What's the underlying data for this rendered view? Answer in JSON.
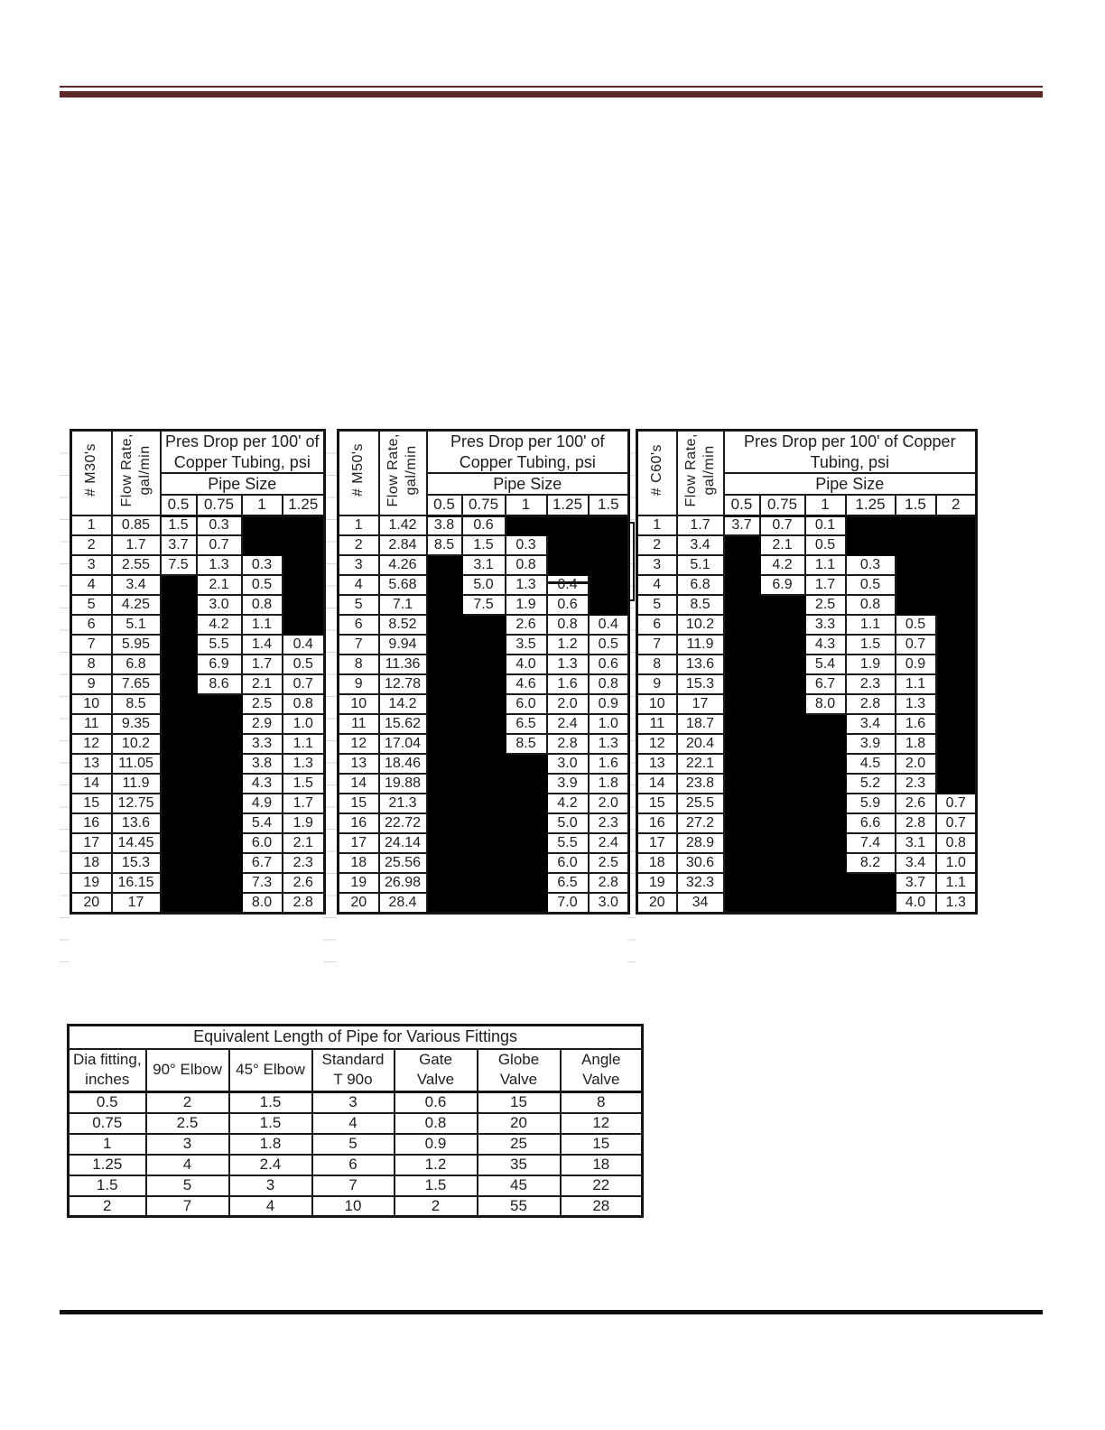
{
  "colors": {
    "top_rule": "#5e2828",
    "bottom_rule": "#0e0e0e",
    "blocked_cell": "#000000",
    "gridline": "#d6d6d6"
  },
  "pressure_tables": [
    {
      "corner_label": "# M30's",
      "flow_label_lines": [
        "Flow Rate,",
        "gal/min"
      ],
      "title_lines": [
        "Pres Drop per 100' of",
        "Copper Tubing, psi"
      ],
      "pipe_size_label": "Pipe Size",
      "sizes": [
        "0.5",
        "0.75",
        "1",
        "1.25"
      ],
      "rows": [
        {
          "n": "1",
          "flow": "0.85",
          "drops": [
            "1.5",
            "0.3",
            "",
            ""
          ]
        },
        {
          "n": "2",
          "flow": "1.7",
          "drops": [
            "3.7",
            "0.7",
            "",
            ""
          ]
        },
        {
          "n": "3",
          "flow": "2.55",
          "drops": [
            "7.5",
            "1.3",
            "0.3",
            ""
          ]
        },
        {
          "n": "4",
          "flow": "3.4",
          "drops": [
            "",
            "2.1",
            "0.5",
            ""
          ]
        },
        {
          "n": "5",
          "flow": "4.25",
          "drops": [
            "",
            "3.0",
            "0.8",
            ""
          ]
        },
        {
          "n": "6",
          "flow": "5.1",
          "drops": [
            "",
            "4.2",
            "1.1",
            ""
          ]
        },
        {
          "n": "7",
          "flow": "5.95",
          "drops": [
            "",
            "5.5",
            "1.4",
            "0.4"
          ]
        },
        {
          "n": "8",
          "flow": "6.8",
          "drops": [
            "",
            "6.9",
            "1.7",
            "0.5"
          ]
        },
        {
          "n": "9",
          "flow": "7.65",
          "drops": [
            "",
            "8.6",
            "2.1",
            "0.7"
          ]
        },
        {
          "n": "10",
          "flow": "8.5",
          "drops": [
            "",
            "",
            "2.5",
            "0.8"
          ]
        },
        {
          "n": "11",
          "flow": "9.35",
          "drops": [
            "",
            "",
            "2.9",
            "1.0"
          ]
        },
        {
          "n": "12",
          "flow": "10.2",
          "drops": [
            "",
            "",
            "3.3",
            "1.1"
          ]
        },
        {
          "n": "13",
          "flow": "11.05",
          "drops": [
            "",
            "",
            "3.8",
            "1.3"
          ]
        },
        {
          "n": "14",
          "flow": "11.9",
          "drops": [
            "",
            "",
            "4.3",
            "1.5"
          ]
        },
        {
          "n": "15",
          "flow": "12.75",
          "drops": [
            "",
            "",
            "4.9",
            "1.7"
          ]
        },
        {
          "n": "16",
          "flow": "13.6",
          "drops": [
            "",
            "",
            "5.4",
            "1.9"
          ]
        },
        {
          "n": "17",
          "flow": "14.45",
          "drops": [
            "",
            "",
            "6.0",
            "2.1"
          ]
        },
        {
          "n": "18",
          "flow": "15.3",
          "drops": [
            "",
            "",
            "6.7",
            "2.3"
          ]
        },
        {
          "n": "19",
          "flow": "16.15",
          "drops": [
            "",
            "",
            "7.3",
            "2.6"
          ]
        },
        {
          "n": "20",
          "flow": "17",
          "drops": [
            "",
            "",
            "8.0",
            "2.8"
          ]
        }
      ]
    },
    {
      "corner_label": "# M50's",
      "flow_label_lines": [
        "Flow Rate,",
        "gal/min"
      ],
      "title_lines": [
        "Pres Drop per 100' of",
        "Copper Tubing, psi"
      ],
      "pipe_size_label": "Pipe Size",
      "sizes": [
        "0.5",
        "0.75",
        "1",
        "1.25",
        "1.5"
      ],
      "rows": [
        {
          "n": "1",
          "flow": "1.42",
          "drops": [
            "3.8",
            "0.6",
            "",
            "",
            ""
          ]
        },
        {
          "n": "2",
          "flow": "2.84",
          "drops": [
            "8.5",
            "1.5",
            "0.3",
            "",
            ""
          ]
        },
        {
          "n": "3",
          "flow": "4.26",
          "drops": [
            "",
            "3.1",
            "0.8",
            "",
            ""
          ]
        },
        {
          "n": "4",
          "flow": "5.68",
          "drops": [
            "",
            "5.0",
            "1.3",
            "0.4",
            ""
          ],
          "strike_index": 3
        },
        {
          "n": "5",
          "flow": "7.1",
          "drops": [
            "",
            "7.5",
            "1.9",
            "0.6",
            ""
          ]
        },
        {
          "n": "6",
          "flow": "8.52",
          "drops": [
            "",
            "",
            "2.6",
            "0.8",
            "0.4"
          ]
        },
        {
          "n": "7",
          "flow": "9.94",
          "drops": [
            "",
            "",
            "3.5",
            "1.2",
            "0.5"
          ]
        },
        {
          "n": "8",
          "flow": "11.36",
          "drops": [
            "",
            "",
            "4.0",
            "1.3",
            "0.6"
          ]
        },
        {
          "n": "9",
          "flow": "12.78",
          "drops": [
            "",
            "",
            "4.6",
            "1.6",
            "0.8"
          ]
        },
        {
          "n": "10",
          "flow": "14.2",
          "drops": [
            "",
            "",
            "6.0",
            "2.0",
            "0.9"
          ]
        },
        {
          "n": "11",
          "flow": "15.62",
          "drops": [
            "",
            "",
            "6.5",
            "2.4",
            "1.0"
          ]
        },
        {
          "n": "12",
          "flow": "17.04",
          "drops": [
            "",
            "",
            "8.5",
            "2.8",
            "1.3"
          ]
        },
        {
          "n": "13",
          "flow": "18.46",
          "drops": [
            "",
            "",
            "",
            "3.0",
            "1.6"
          ]
        },
        {
          "n": "14",
          "flow": "19.88",
          "drops": [
            "",
            "",
            "",
            "3.9",
            "1.8"
          ]
        },
        {
          "n": "15",
          "flow": "21.3",
          "drops": [
            "",
            "",
            "",
            "4.2",
            "2.0"
          ]
        },
        {
          "n": "16",
          "flow": "22.72",
          "drops": [
            "",
            "",
            "",
            "5.0",
            "2.3"
          ]
        },
        {
          "n": "17",
          "flow": "24.14",
          "drops": [
            "",
            "",
            "",
            "5.5",
            "2.4"
          ]
        },
        {
          "n": "18",
          "flow": "25.56",
          "drops": [
            "",
            "",
            "",
            "6.0",
            "2.5"
          ]
        },
        {
          "n": "19",
          "flow": "26.98",
          "drops": [
            "",
            "",
            "",
            "6.5",
            "2.8"
          ]
        },
        {
          "n": "20",
          "flow": "28.4",
          "drops": [
            "",
            "",
            "",
            "7.0",
            "3.0"
          ]
        }
      ]
    },
    {
      "corner_label": "# C60's",
      "flow_label_lines": [
        "Flow Rate,",
        "gal/min"
      ],
      "title_lines": [
        "Pres Drop per 100' of Copper",
        "Tubing, psi"
      ],
      "pipe_size_label": "Pipe Size",
      "sizes": [
        "0.5",
        "0.75",
        "1",
        "1.25",
        "1.5",
        "2"
      ],
      "rows": [
        {
          "n": "1",
          "flow": "1.7",
          "drops": [
            "3.7",
            "0.7",
            "0.1",
            "",
            "",
            ""
          ]
        },
        {
          "n": "2",
          "flow": "3.4",
          "drops": [
            "",
            "2.1",
            "0.5",
            "",
            "",
            ""
          ]
        },
        {
          "n": "3",
          "flow": "5.1",
          "drops": [
            "",
            "4.2",
            "1.1",
            "0.3",
            "",
            ""
          ]
        },
        {
          "n": "4",
          "flow": "6.8",
          "drops": [
            "",
            "6.9",
            "1.7",
            "0.5",
            "",
            ""
          ]
        },
        {
          "n": "5",
          "flow": "8.5",
          "drops": [
            "",
            "",
            "2.5",
            "0.8",
            "",
            ""
          ]
        },
        {
          "n": "6",
          "flow": "10.2",
          "drops": [
            "",
            "",
            "3.3",
            "1.1",
            "0.5",
            ""
          ]
        },
        {
          "n": "7",
          "flow": "11.9",
          "drops": [
            "",
            "",
            "4.3",
            "1.5",
            "0.7",
            ""
          ]
        },
        {
          "n": "8",
          "flow": "13.6",
          "drops": [
            "",
            "",
            "5.4",
            "1.9",
            "0.9",
            ""
          ]
        },
        {
          "n": "9",
          "flow": "15.3",
          "drops": [
            "",
            "",
            "6.7",
            "2.3",
            "1.1",
            ""
          ]
        },
        {
          "n": "10",
          "flow": "17",
          "drops": [
            "",
            "",
            "8.0",
            "2.8",
            "1.3",
            ""
          ]
        },
        {
          "n": "11",
          "flow": "18.7",
          "drops": [
            "",
            "",
            "",
            "3.4",
            "1.6",
            ""
          ]
        },
        {
          "n": "12",
          "flow": "20.4",
          "drops": [
            "",
            "",
            "",
            "3.9",
            "1.8",
            ""
          ]
        },
        {
          "n": "13",
          "flow": "22.1",
          "drops": [
            "",
            "",
            "",
            "4.5",
            "2.0",
            ""
          ]
        },
        {
          "n": "14",
          "flow": "23.8",
          "drops": [
            "",
            "",
            "",
            "5.2",
            "2.3",
            ""
          ]
        },
        {
          "n": "15",
          "flow": "25.5",
          "drops": [
            "",
            "",
            "",
            "5.9",
            "2.6",
            "0.7"
          ]
        },
        {
          "n": "16",
          "flow": "27.2",
          "drops": [
            "",
            "",
            "",
            "6.6",
            "2.8",
            "0.7"
          ]
        },
        {
          "n": "17",
          "flow": "28.9",
          "drops": [
            "",
            "",
            "",
            "7.4",
            "3.1",
            "0.8"
          ]
        },
        {
          "n": "18",
          "flow": "30.6",
          "drops": [
            "",
            "",
            "",
            "8.2",
            "3.4",
            "1.0"
          ]
        },
        {
          "n": "19",
          "flow": "32.3",
          "drops": [
            "",
            "",
            "",
            "",
            "3.7",
            "1.1"
          ]
        },
        {
          "n": "20",
          "flow": "34",
          "drops": [
            "",
            "",
            "",
            "",
            "4.0",
            "1.3"
          ]
        }
      ]
    }
  ],
  "fittings": {
    "title": "Equivalent Length of Pipe for Various Fittings",
    "header_lines": [
      [
        "Dia fitting,",
        "inches"
      ],
      [
        "90° Elbow"
      ],
      [
        "45° Elbow"
      ],
      [
        "Standard",
        "T 90o"
      ],
      [
        "Gate",
        "Valve"
      ],
      [
        "Globe",
        "Valve"
      ],
      [
        "Angle",
        "Valve"
      ]
    ],
    "rows": [
      [
        "0.5",
        "2",
        "1.5",
        "3",
        "0.6",
        "15",
        "8"
      ],
      [
        "0.75",
        "2.5",
        "1.5",
        "4",
        "0.8",
        "20",
        "12"
      ],
      [
        "1",
        "3",
        "1.8",
        "5",
        "0.9",
        "25",
        "15"
      ],
      [
        "1.25",
        "4",
        "2.4",
        "6",
        "1.2",
        "35",
        "18"
      ],
      [
        "1.5",
        "5",
        "3",
        "7",
        "1.5",
        "45",
        "22"
      ],
      [
        "2",
        "7",
        "4",
        "10",
        "2",
        "55",
        "28"
      ]
    ]
  }
}
